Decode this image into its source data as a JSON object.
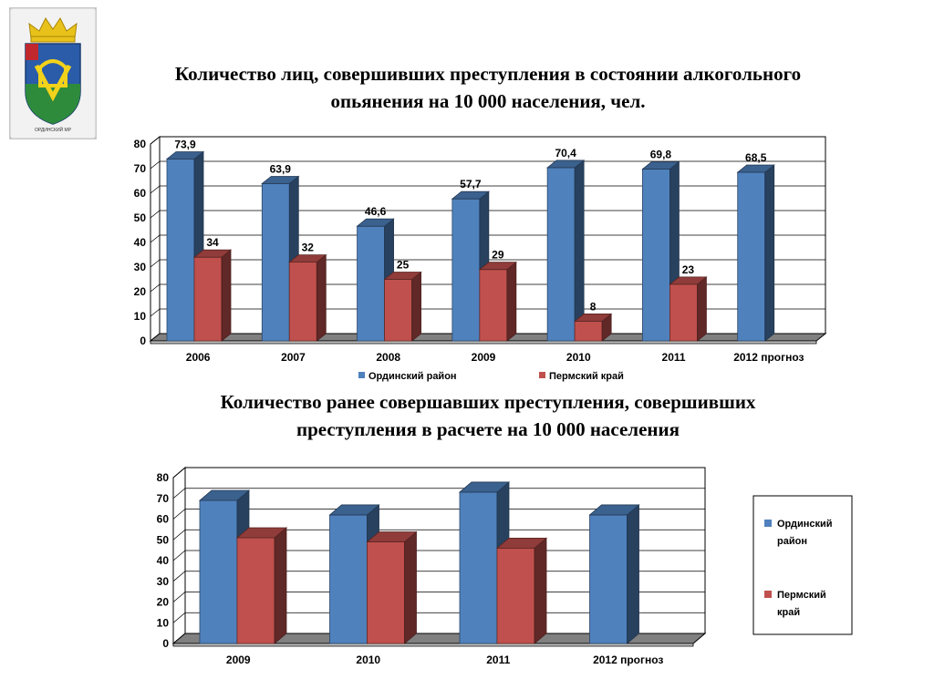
{
  "header": {
    "emblem_caption": "ОРДИНСКИЙ МР",
    "chart1_title_line1": "Количество лиц, совершивших преступления в состоянии алкогольного",
    "chart1_title_line2": "опьянения на 10 000 населения, чел.",
    "chart2_title_line1": "Количество ранее совершавших преступления, совершивших",
    "chart2_title_line2": "преступления в расчете на 10 000 населения"
  },
  "colors": {
    "blue": "#4f81bd",
    "red": "#c0504d"
  },
  "chart_data": [
    {
      "type": "bar",
      "title": "Количество лиц, совершивших преступления в состоянии алкогольного опьянения на 10 000 населения, чел.",
      "categories": [
        "2006",
        "2007",
        "2008",
        "2009",
        "2010",
        "2011",
        "2012 прогноз"
      ],
      "series": [
        {
          "name": "Ординский район",
          "values": [
            73.9,
            63.9,
            46.6,
            57.7,
            70.4,
            69.8,
            68.5
          ],
          "labels": [
            "73,9",
            "63,9",
            "46,6",
            "57,7",
            "70,4",
            "69,8",
            "68,5"
          ]
        },
        {
          "name": "Пермский край",
          "values": [
            34,
            32,
            25,
            29,
            8,
            23,
            null
          ],
          "labels": [
            "34",
            "32",
            "25",
            "29",
            "8",
            "23",
            ""
          ]
        }
      ],
      "yticks": [
        "0",
        "10",
        "20",
        "30",
        "40",
        "50",
        "60",
        "70",
        "80"
      ],
      "ylim": [
        0,
        80
      ],
      "grid": true,
      "legend": "bottom"
    },
    {
      "type": "bar",
      "title": "Количество ранее совершавших преступления, совершивших преступления в расчете на 10 000 населения",
      "categories": [
        "2009",
        "2010",
        "2011",
        "2012 прогноз"
      ],
      "series": [
        {
          "name": "Ординский район",
          "legend_lines": [
            "Ординский",
            "район"
          ],
          "values": [
            69,
            62,
            73,
            62
          ]
        },
        {
          "name": "Пермский край",
          "legend_lines": [
            "Пермский",
            "край"
          ],
          "values": [
            51,
            49,
            46,
            null
          ]
        }
      ],
      "yticks": [
        "0",
        "10",
        "20",
        "30",
        "40",
        "50",
        "60",
        "70",
        "80"
      ],
      "ylim": [
        0,
        80
      ],
      "grid": true,
      "legend": "right"
    }
  ]
}
